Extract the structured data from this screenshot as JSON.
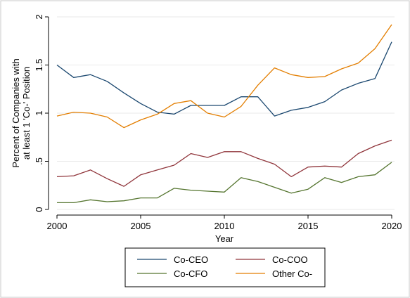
{
  "chart_data": {
    "type": "line",
    "xlabel": "Year",
    "ylabel_lines": [
      "Percent of Companies with",
      "at least 1 'Co-' Position"
    ],
    "xlim": [
      2000,
      2020
    ],
    "ylim": [
      0,
      2
    ],
    "xticks": [
      2000,
      2005,
      2010,
      2015,
      2020
    ],
    "yticks": [
      0,
      0.5,
      1,
      1.5,
      2
    ],
    "ytick_labels": [
      "0",
      ".5",
      "1",
      "1.5",
      "2"
    ],
    "grid": "horizontal",
    "legend_position": "bottom",
    "x": [
      2000,
      2001,
      2002,
      2003,
      2004,
      2005,
      2006,
      2007,
      2008,
      2009,
      2010,
      2011,
      2012,
      2013,
      2014,
      2015,
      2016,
      2017,
      2018,
      2019,
      2020
    ],
    "series": [
      {
        "name": "Co-CEO",
        "color": "#1a476f",
        "values": [
          1.5,
          1.37,
          1.4,
          1.33,
          1.21,
          1.1,
          1.01,
          0.99,
          1.08,
          1.08,
          1.08,
          1.17,
          1.17,
          0.97,
          1.03,
          1.06,
          1.12,
          1.24,
          1.31,
          1.36,
          1.74
        ]
      },
      {
        "name": "Co-COO",
        "color": "#90353b",
        "values": [
          0.34,
          0.35,
          0.41,
          0.32,
          0.24,
          0.36,
          0.41,
          0.46,
          0.58,
          0.54,
          0.6,
          0.6,
          0.53,
          0.47,
          0.34,
          0.44,
          0.45,
          0.44,
          0.58,
          0.66,
          0.72
        ]
      },
      {
        "name": "Co-CFO",
        "color": "#55752f",
        "values": [
          0.07,
          0.07,
          0.1,
          0.08,
          0.09,
          0.12,
          0.12,
          0.22,
          0.2,
          0.19,
          0.18,
          0.33,
          0.29,
          0.23,
          0.17,
          0.21,
          0.33,
          0.28,
          0.34,
          0.36,
          0.49
        ]
      },
      {
        "name": "Other Co-",
        "color": "#e37e00",
        "values": [
          0.97,
          1.01,
          1.0,
          0.96,
          0.85,
          0.93,
          0.99,
          1.1,
          1.13,
          1.0,
          0.96,
          1.07,
          1.29,
          1.47,
          1.4,
          1.37,
          1.38,
          1.46,
          1.52,
          1.67,
          1.92
        ]
      }
    ]
  }
}
